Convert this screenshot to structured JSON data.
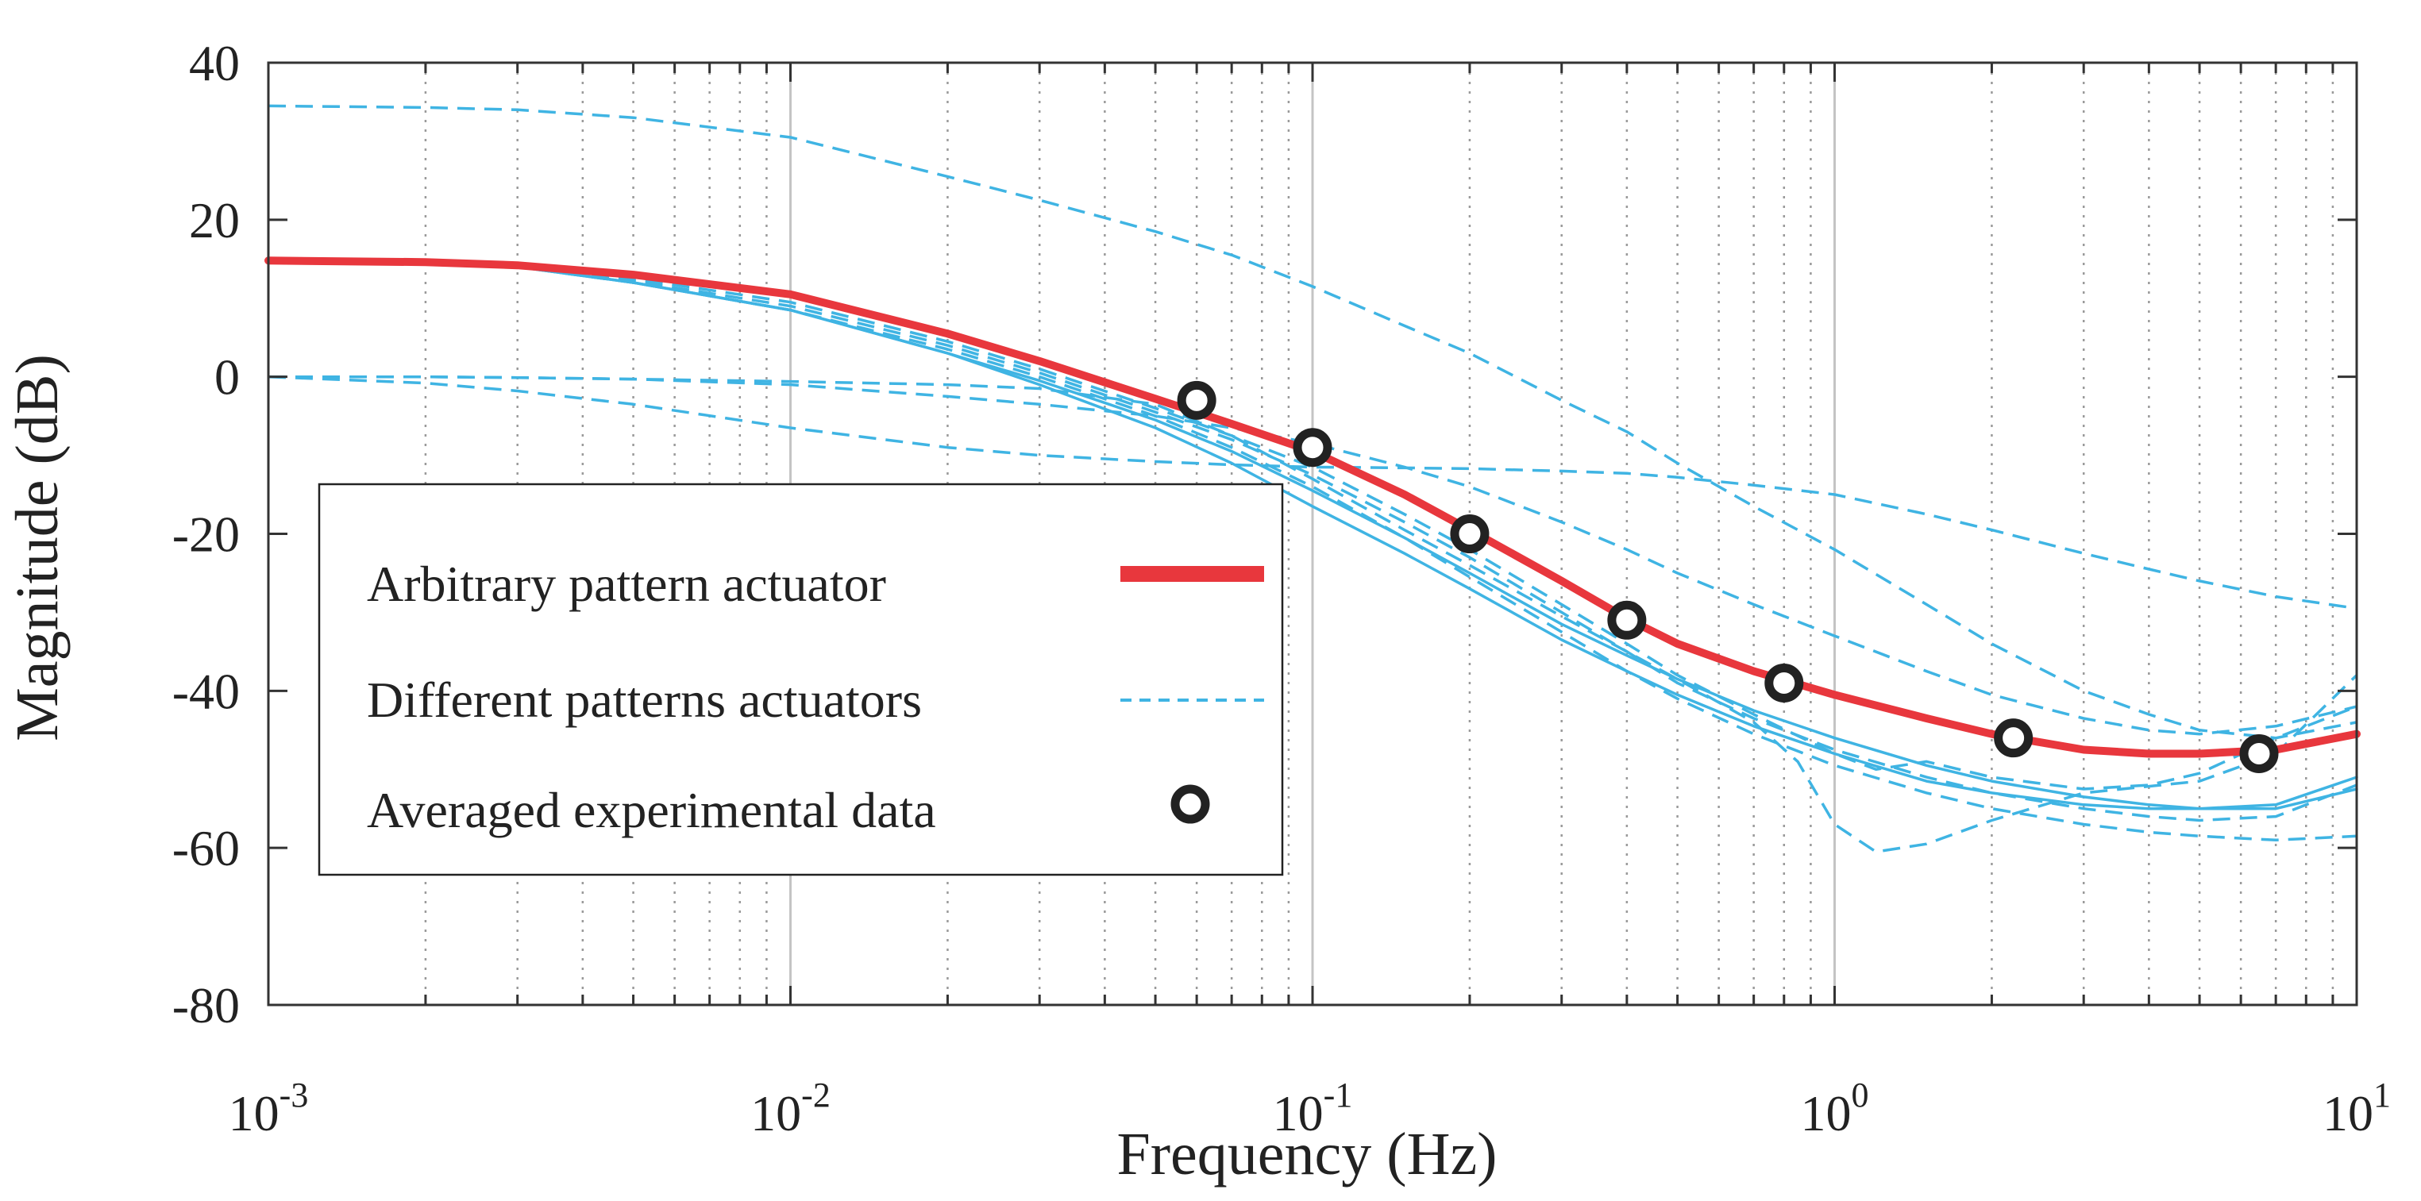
{
  "colors": {
    "arbitrary": "#e8373d",
    "different": "#3fb4e3",
    "experimental": "#222222",
    "grid_major": "#c4c4c4",
    "grid_minor": "#9a9a9a",
    "axis": "#333333"
  },
  "chart_data": {
    "type": "line",
    "x_scale": "log",
    "xlabel": "Frequency (Hz)",
    "ylabel": "Magnitude (dB)",
    "xlim": [
      0.001,
      10
    ],
    "ylim": [
      -80,
      40
    ],
    "grid": true,
    "legend_position": "center-left",
    "x_ticks": [
      {
        "value": 0.001,
        "base": "10",
        "exp": "-3"
      },
      {
        "value": 0.01,
        "base": "10",
        "exp": "-2"
      },
      {
        "value": 0.1,
        "base": "10",
        "exp": "-1"
      },
      {
        "value": 1,
        "base": "10",
        "exp": "0"
      },
      {
        "value": 10,
        "base": "10",
        "exp": "1"
      }
    ],
    "y_ticks": [
      {
        "value": 40,
        "label": "40"
      },
      {
        "value": 20,
        "label": "20"
      },
      {
        "value": 0,
        "label": "0"
      },
      {
        "value": -20,
        "label": "-20"
      },
      {
        "value": -40,
        "label": "-40"
      },
      {
        "value": -60,
        "label": "-60"
      },
      {
        "value": -80,
        "label": "-80"
      }
    ],
    "legend": [
      {
        "label": "Arbitrary pattern actuator",
        "style": "solid-thick"
      },
      {
        "label": "Different patterns actuators",
        "style": "dashed"
      },
      {
        "label": "Averaged experimental data",
        "style": "circle"
      }
    ],
    "series": [
      {
        "name": "Arbitrary pattern actuator",
        "style": "solid-thick",
        "x": [
          0.001,
          0.002,
          0.003,
          0.005,
          0.01,
          0.02,
          0.03,
          0.05,
          0.07,
          0.1,
          0.15,
          0.2,
          0.3,
          0.4,
          0.5,
          0.7,
          1,
          1.5,
          2,
          3,
          4,
          5,
          7,
          10
        ],
        "y": [
          14.8,
          14.6,
          14.2,
          13.0,
          10.5,
          5.5,
          2.0,
          -2.8,
          -6.0,
          -9.5,
          -15.0,
          -19.5,
          -26.0,
          -30.8,
          -34.0,
          -37.5,
          -40.5,
          -43.5,
          -45.5,
          -47.5,
          -48.0,
          -48.0,
          -47.5,
          -45.5
        ]
      },
      {
        "style": "dashed",
        "x": [
          0.001,
          0.002,
          0.003,
          0.005,
          0.01,
          0.02,
          0.03,
          0.05,
          0.07,
          0.1,
          0.15,
          0.2,
          0.3,
          0.4,
          0.5,
          0.7,
          1,
          1.5,
          2,
          3,
          4,
          5,
          7,
          10
        ],
        "y": [
          34.5,
          34.3,
          34.0,
          33.0,
          30.5,
          25.5,
          22.5,
          18.5,
          15.5,
          11.5,
          6.5,
          3.0,
          -3.0,
          -7.0,
          -11.0,
          -16.5,
          -22.0,
          -29.0,
          -34.0,
          -40.0,
          -43.0,
          -45.0,
          -46.0,
          -44.0
        ]
      },
      {
        "style": "dashed",
        "x": [
          0.001,
          0.002,
          0.003,
          0.005,
          0.01,
          0.02,
          0.03,
          0.05,
          0.07,
          0.1,
          0.15,
          0.2,
          0.3,
          0.4,
          0.5,
          0.7,
          1,
          1.5,
          2,
          3,
          4,
          5,
          7,
          10
        ],
        "y": [
          0.0,
          0.0,
          -0.1,
          -0.3,
          -1.0,
          -2.5,
          -3.5,
          -5.0,
          -6.5,
          -8.5,
          -11.5,
          -14.0,
          -18.5,
          -22.0,
          -25.0,
          -29.0,
          -33.0,
          -37.5,
          -40.5,
          -43.5,
          -45.0,
          -45.5,
          -44.5,
          -42.0
        ]
      },
      {
        "style": "dashed",
        "x": [
          0.001,
          0.002,
          0.003,
          0.005,
          0.01,
          0.02,
          0.03,
          0.05,
          0.07,
          0.1,
          0.15,
          0.2,
          0.3,
          0.4,
          0.5,
          0.7,
          1,
          1.5,
          2,
          3,
          4,
          5,
          7,
          10
        ],
        "y": [
          0.0,
          -0.8,
          -1.8,
          -3.5,
          -6.5,
          -9.0,
          -10.0,
          -10.8,
          -11.2,
          -11.5,
          -11.6,
          -11.7,
          -12.0,
          -12.3,
          -12.8,
          -13.8,
          -15.0,
          -17.5,
          -19.5,
          -22.5,
          -24.5,
          -26.0,
          -28.0,
          -29.5
        ]
      },
      {
        "style": "dashed",
        "x": [
          0.001,
          0.002,
          0.003,
          0.005,
          0.01,
          0.02,
          0.03,
          0.05,
          0.07,
          0.1,
          0.15,
          0.2,
          0.3,
          0.4,
          0.5,
          0.7,
          1,
          1.2,
          1.5,
          2,
          3,
          4,
          5,
          7,
          10
        ],
        "y": [
          14.8,
          14.6,
          14.2,
          12.5,
          9.5,
          4.5,
          1.0,
          -4.0,
          -7.5,
          -11.5,
          -17.5,
          -22.0,
          -29.0,
          -34.0,
          -38.0,
          -43.0,
          -48.0,
          -50.0,
          -49.0,
          -51.0,
          -52.5,
          -52.0,
          -50.5,
          -46.0,
          -42.0
        ]
      },
      {
        "style": "dashed",
        "x": [
          0.001,
          0.002,
          0.003,
          0.005,
          0.01,
          0.02,
          0.03,
          0.05,
          0.07,
          0.1,
          0.15,
          0.2,
          0.3,
          0.4,
          0.5,
          0.7,
          1,
          1.5,
          2,
          3,
          4,
          5,
          7,
          10
        ],
        "y": [
          14.8,
          14.6,
          14.0,
          12.2,
          9.0,
          4.0,
          0.5,
          -4.5,
          -8.0,
          -12.5,
          -18.5,
          -23.0,
          -30.0,
          -35.0,
          -39.0,
          -43.5,
          -47.5,
          -51.0,
          -53.0,
          -55.0,
          -56.0,
          -56.5,
          -56.0,
          -52.0
        ]
      },
      {
        "style": "dashed",
        "x": [
          0.001,
          0.002,
          0.003,
          0.005,
          0.01,
          0.02,
          0.03,
          0.05,
          0.07,
          0.1,
          0.15,
          0.2,
          0.3,
          0.4,
          0.5,
          0.7,
          0.85,
          1,
          1.2,
          1.5,
          2,
          3,
          5,
          7,
          10
        ],
        "y": [
          0.0,
          0.0,
          -0.1,
          -0.3,
          -0.6,
          -1.0,
          -1.5,
          -3.5,
          -7.5,
          -13.0,
          -19.5,
          -24.0,
          -30.5,
          -35.0,
          -38.5,
          -44.0,
          -49.0,
          -57.0,
          -60.5,
          -59.5,
          -56.5,
          -53.0,
          -51.5,
          -48.0,
          -38.0
        ]
      },
      {
        "style": "dashed",
        "x": [
          0.001,
          0.002,
          0.003,
          0.005,
          0.01,
          0.02,
          0.03,
          0.05,
          0.07,
          0.1,
          0.15,
          0.2,
          0.3,
          0.4,
          0.5,
          0.7,
          1,
          1.5,
          2,
          3,
          4,
          5,
          7,
          10
        ],
        "y": [
          14.8,
          14.6,
          14.0,
          12.0,
          8.5,
          3.5,
          0.0,
          -5.0,
          -9.0,
          -14.0,
          -20.5,
          -25.5,
          -32.5,
          -37.5,
          -41.0,
          -45.5,
          -49.5,
          -53.0,
          -55.0,
          -57.0,
          -58.0,
          -58.5,
          -59.0,
          -58.5
        ]
      },
      {
        "style": "solid-thin",
        "x": [
          0.001,
          0.002,
          0.003,
          0.005,
          0.01,
          0.02,
          0.03,
          0.05,
          0.07,
          0.1,
          0.15,
          0.2,
          0.3,
          0.4,
          0.5,
          0.7,
          1,
          1.5,
          2,
          3,
          4,
          5,
          7,
          10
        ],
        "y": [
          14.8,
          14.6,
          14.0,
          12.0,
          8.5,
          3.0,
          -0.5,
          -5.5,
          -9.5,
          -14.5,
          -20.5,
          -25.0,
          -31.5,
          -35.5,
          -38.5,
          -42.5,
          -46.0,
          -49.5,
          -51.5,
          -53.5,
          -54.5,
          -55.0,
          -55.0,
          -52.5
        ]
      },
      {
        "style": "solid-thin",
        "x": [
          0.001,
          0.002,
          0.003,
          0.005,
          0.01,
          0.02,
          0.03,
          0.05,
          0.07,
          0.1,
          0.15,
          0.2,
          0.3,
          0.4,
          0.5,
          0.7,
          1,
          1.5,
          2,
          3,
          4,
          5,
          7,
          10
        ],
        "y": [
          14.8,
          14.6,
          14.0,
          12.0,
          8.5,
          3.0,
          -1.0,
          -6.5,
          -11.0,
          -16.5,
          -22.5,
          -27.0,
          -33.5,
          -37.5,
          -40.5,
          -44.5,
          -48.0,
          -51.5,
          -53.0,
          -54.5,
          -55.0,
          -55.0,
          -54.5,
          -51.0
        ]
      },
      {
        "name": "Averaged experimental data",
        "style": "circle",
        "x": [
          0.06,
          0.1,
          0.2,
          0.4,
          0.8,
          2.2,
          6.5
        ],
        "y": [
          -3,
          -9,
          -20,
          -31,
          -39,
          -46,
          -48
        ]
      }
    ]
  }
}
